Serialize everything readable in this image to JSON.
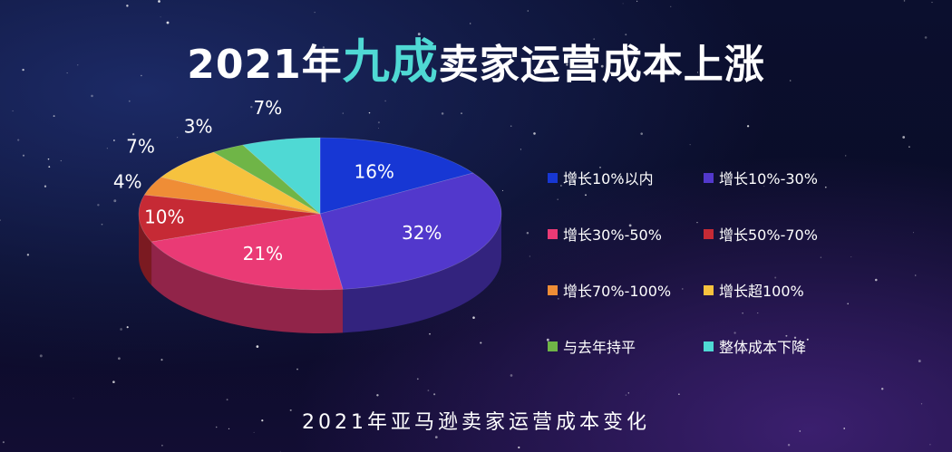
{
  "title": {
    "pre": "2021年",
    "highlight": "九成",
    "post": "卖家运营成本上涨"
  },
  "footer": "2021年亚马逊卖家运营成本变化",
  "chart_data": {
    "type": "pie",
    "title": "2021年九成卖家运营成本上涨",
    "subtitle": "2021年亚马逊卖家运营成本变化",
    "legend_position": "right",
    "slices": [
      {
        "label": "增长10%以内",
        "value": 16,
        "display": "16%",
        "color": "#1737d4"
      },
      {
        "label": "增长10%-30%",
        "value": 32,
        "display": "32%",
        "color": "#5238cc"
      },
      {
        "label": "增长30%-50%",
        "value": 21,
        "display": "21%",
        "color": "#ea3a75"
      },
      {
        "label": "增长50%-70%",
        "value": 10,
        "display": "10%",
        "color": "#c62a35"
      },
      {
        "label": "增长70%-100%",
        "value": 4,
        "display": "4%",
        "color": "#ef8d36"
      },
      {
        "label": "增长超100%",
        "value": 7,
        "display": "7%",
        "color": "#f6c23e"
      },
      {
        "label": "与去年持平",
        "value": 3,
        "display": "3%",
        "color": "#6fb547"
      },
      {
        "label": "整体成本下降",
        "value": 7,
        "display": "7%",
        "color": "#4fd9d4"
      }
    ]
  }
}
